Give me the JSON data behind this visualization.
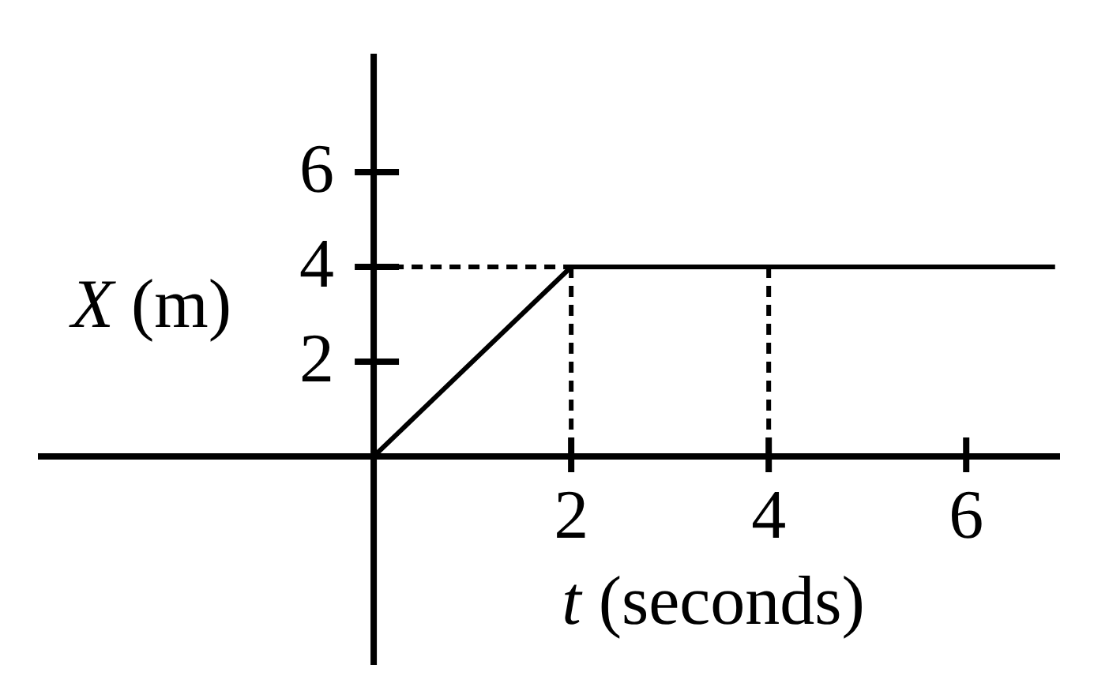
{
  "chart_data": {
    "type": "line",
    "xlabel": "t (seconds)",
    "ylabel": "X (m)",
    "xlim": [
      -3.4,
      6.95
    ],
    "ylim": [
      -4.4,
      8.5
    ],
    "xticks": [
      2,
      4,
      6
    ],
    "yticks": [
      2,
      4,
      6
    ],
    "series": [
      {
        "type": "line",
        "x": [
          0,
          2,
          6.9
        ],
        "values": [
          0,
          4,
          4
        ],
        "color": "#000000",
        "line_style": "solid"
      },
      {
        "type": "line",
        "x": [
          0,
          2
        ],
        "values": [
          4,
          4
        ],
        "color": "#000000",
        "line_style": "dashed"
      },
      {
        "type": "line",
        "x": [
          2,
          2
        ],
        "values": [
          4,
          0
        ],
        "color": "#000000",
        "line_style": "dashed"
      },
      {
        "type": "line",
        "x": [
          4,
          4
        ],
        "values": [
          4,
          0
        ],
        "color": "#000000",
        "line_style": "dashed"
      }
    ]
  }
}
